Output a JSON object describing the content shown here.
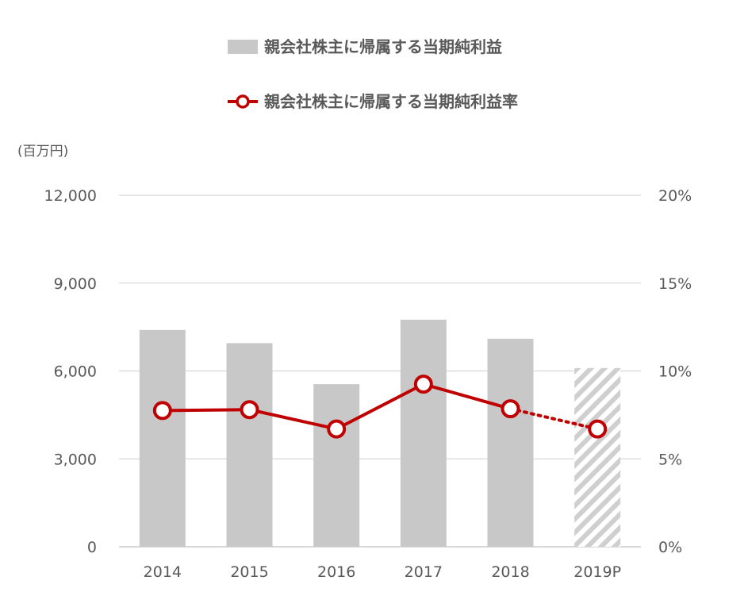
{
  "chart_data": {
    "type": "bar",
    "categories": [
      "2014",
      "2015",
      "2016",
      "2017",
      "2018",
      "2019P"
    ],
    "projected_category": "2019P",
    "unit_label": "(百万円)",
    "series": [
      {
        "name": "親会社株主に帰属する当期純利益",
        "type": "bar",
        "axis": "left",
        "values": [
          7400,
          6950,
          5550,
          7750,
          7100,
          6100
        ]
      },
      {
        "name": "親会社株主に帰属する当期純利益率",
        "type": "line",
        "axis": "right",
        "values": [
          7.75,
          7.8,
          6.7,
          9.25,
          7.85,
          6.7
        ]
      }
    ],
    "y_left": {
      "ticks": [
        "0",
        "3,000",
        "6,000",
        "9,000",
        "12,000"
      ],
      "lim": [
        0,
        12000
      ]
    },
    "y_right": {
      "ticks": [
        "0%",
        "5%",
        "10%",
        "15%",
        "20%"
      ],
      "lim": [
        0,
        20
      ]
    },
    "grid": true,
    "legend_position": "top",
    "colors": {
      "bar": "#c8c8c8",
      "line": "#c00000",
      "grid": "#d9d9d9",
      "text": "#595959"
    }
  }
}
